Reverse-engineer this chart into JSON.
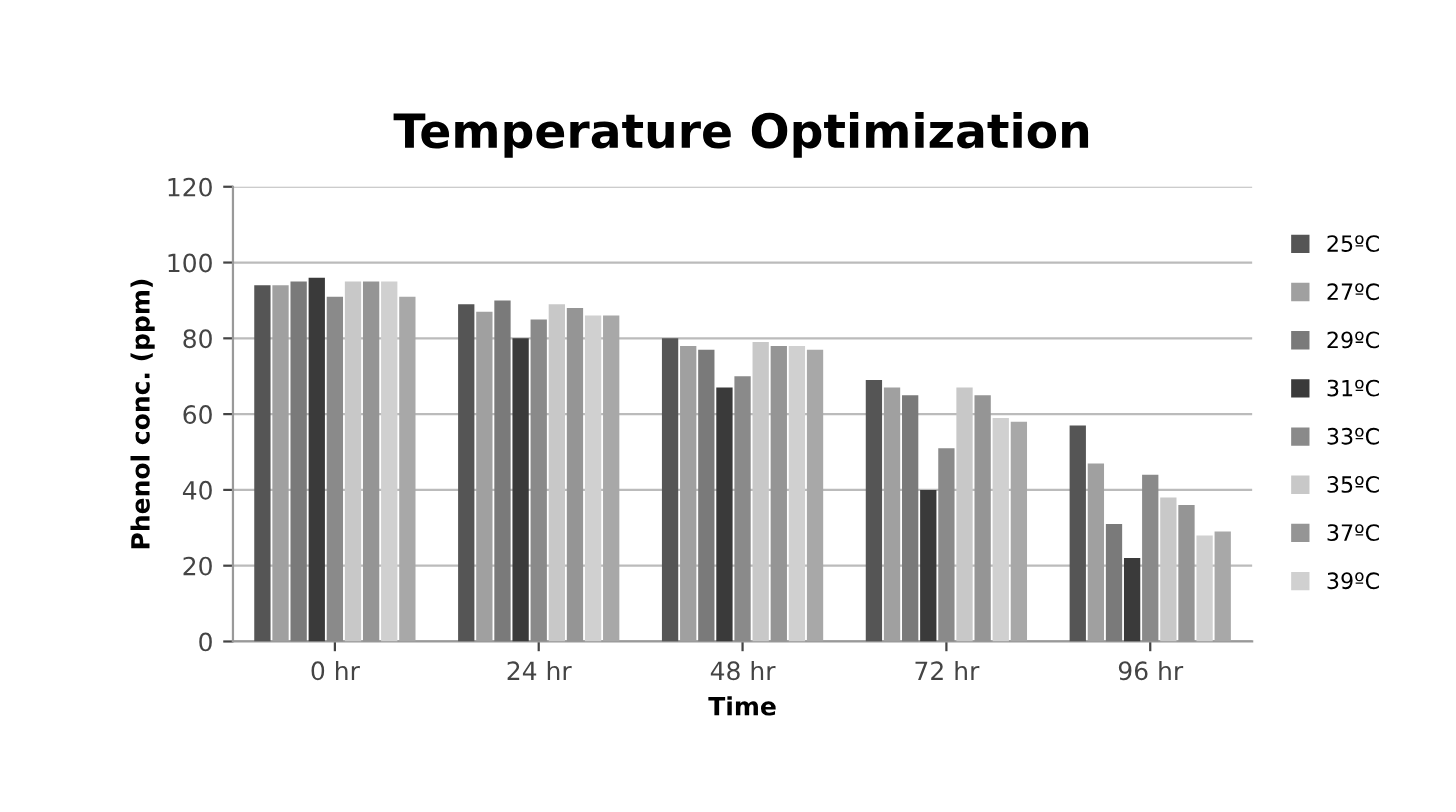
{
  "chart_data": {
    "type": "bar",
    "title": "Temperature Optimization",
    "xlabel": "Time",
    "ylabel": "Phenol conc. (ppm)",
    "categories": [
      "0 hr",
      "24 hr",
      "48 hr",
      "72 hr",
      "96 hr"
    ],
    "series": [
      {
        "name": "25ºC",
        "color": "#555555",
        "values": [
          94,
          89,
          80,
          69,
          57
        ]
      },
      {
        "name": "27ºC",
        "color": "#a0a0a0",
        "values": [
          94,
          87,
          78,
          67,
          47
        ]
      },
      {
        "name": "29ºC",
        "color": "#7a7a7a",
        "values": [
          95,
          90,
          77,
          65,
          31
        ]
      },
      {
        "name": "31ºC",
        "color": "#3a3a3a",
        "values": [
          96,
          80,
          67,
          40,
          22
        ]
      },
      {
        "name": "33ºC",
        "color": "#8a8a8a",
        "values": [
          91,
          85,
          70,
          51,
          44
        ]
      },
      {
        "name": "35ºC",
        "color": "#c8c8c8",
        "values": [
          95,
          89,
          79,
          67,
          38
        ]
      },
      {
        "name": "37ºC",
        "color": "#959595",
        "values": [
          95,
          88,
          78,
          65,
          36
        ]
      },
      {
        "name": "39ºC",
        "color": "#d0d0d0",
        "values": [
          95,
          86,
          78,
          59,
          28
        ]
      },
      {
        "color": "#a8a8a8",
        "values": [
          91,
          86,
          77,
          58,
          29
        ]
      }
    ],
    "ylim": [
      0,
      120
    ],
    "yticks": [
      0,
      20,
      40,
      60,
      80,
      100,
      120
    ],
    "grid": "y",
    "legend": "right"
  }
}
